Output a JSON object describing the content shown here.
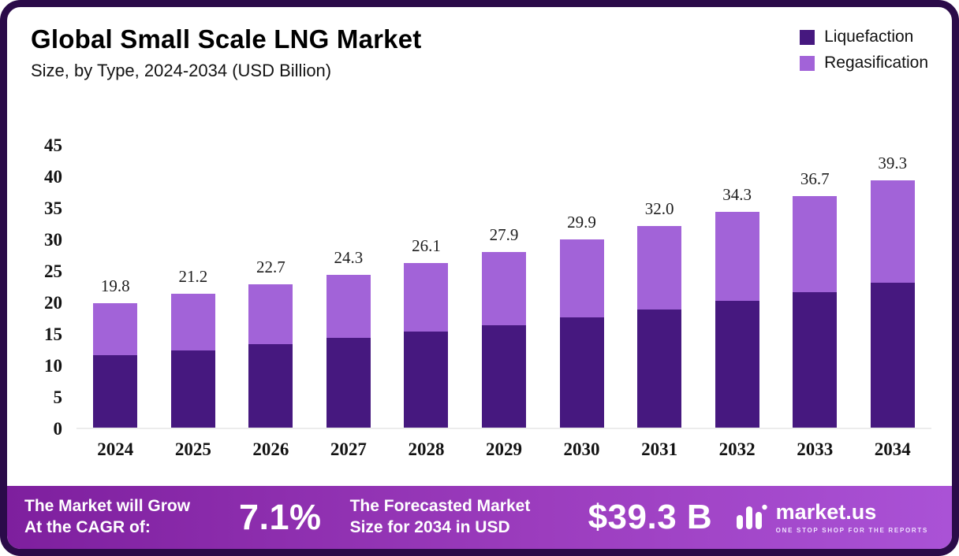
{
  "header": {
    "title": "Global Small Scale LNG Market",
    "subtitle": "Size, by Type, 2024-2034 (USD Billion)"
  },
  "legend": [
    {
      "label": "Liquefaction",
      "color": "#46187f"
    },
    {
      "label": "Regasification",
      "color": "#a263d8"
    }
  ],
  "chart_data": {
    "type": "bar",
    "stacked": true,
    "title": "Global Small Scale LNG Market Size, by Type, 2024-2034 (USD Billion)",
    "categories": [
      "2024",
      "2025",
      "2026",
      "2027",
      "2028",
      "2029",
      "2030",
      "2031",
      "2032",
      "2033",
      "2034"
    ],
    "series": [
      {
        "name": "Liquefaction",
        "color": "#46187f",
        "values": [
          11.5,
          12.3,
          13.2,
          14.2,
          15.2,
          16.2,
          17.5,
          18.7,
          20.1,
          21.5,
          23.0
        ]
      },
      {
        "name": "Regasification",
        "color": "#a263d8",
        "values": [
          8.3,
          8.9,
          9.5,
          10.1,
          10.9,
          11.7,
          12.4,
          13.3,
          14.2,
          15.2,
          16.3
        ]
      }
    ],
    "totals": [
      "19.8",
      "21.2",
      "22.7",
      "24.3",
      "26.1",
      "27.9",
      "29.9",
      "32.0",
      "34.3",
      "36.7",
      "39.3"
    ],
    "xlabel": "",
    "ylabel": "",
    "y_ticks": [
      0,
      5,
      10,
      15,
      20,
      25,
      30,
      35,
      40,
      45
    ],
    "ylim": [
      0,
      45
    ],
    "grid": false,
    "legend_position": "top-right"
  },
  "footer": {
    "cagr_label": "The Market will Grow\nAt the CAGR of:",
    "cagr_value": "7.1%",
    "forecast_label": "The Forecasted Market\nSize for 2034 in USD",
    "forecast_value": "$39.3 B",
    "brand": {
      "name": "market.us",
      "tagline": "ONE STOP SHOP FOR THE REPORTS"
    }
  }
}
